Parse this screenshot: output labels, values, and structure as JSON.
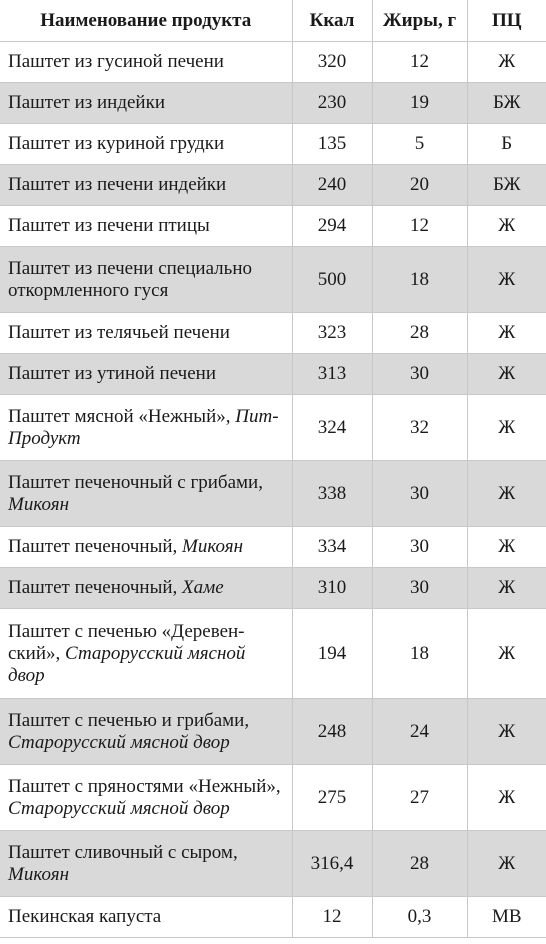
{
  "headers": {
    "name": "Наименование продукта",
    "kcal": "Ккал",
    "fat": "Жиры, г",
    "pc": "ПЦ"
  },
  "rows": [
    {
      "name": "Паштет из гусиной печени",
      "maker": "",
      "kcal": "320",
      "fat": "12",
      "pc": "Ж"
    },
    {
      "name": "Паштет из индейки",
      "maker": "",
      "kcal": "230",
      "fat": "19",
      "pc": "БЖ"
    },
    {
      "name": "Паштет из куриной грудки",
      "maker": "",
      "kcal": "135",
      "fat": "5",
      "pc": "Б"
    },
    {
      "name": "Паштет из печени индейки",
      "maker": "",
      "kcal": "240",
      "fat": "20",
      "pc": "БЖ"
    },
    {
      "name": "Паштет из печени птицы",
      "maker": "",
      "kcal": "294",
      "fat": "12",
      "pc": "Ж"
    },
    {
      "name": "Паштет из печени специально откормленного гуся",
      "maker": "",
      "kcal": "500",
      "fat": "18",
      "pc": "Ж"
    },
    {
      "name": "Паштет из телячьей печени",
      "maker": "",
      "kcal": "323",
      "fat": "28",
      "pc": "Ж"
    },
    {
      "name": "Паштет из утиной печени",
      "maker": "",
      "kcal": "313",
      "fat": "30",
      "pc": "Ж"
    },
    {
      "name": "Паштет мясной «Нежный»,",
      "maker": "Пит-Продукт",
      "kcal": "324",
      "fat": "32",
      "pc": "Ж"
    },
    {
      "name": "Паштет печеночный с грибами,",
      "maker": "Микоян",
      "kcal": "338",
      "fat": "30",
      "pc": "Ж"
    },
    {
      "name": "Паштет печеночный,",
      "maker": "Микоян",
      "kcal": "334",
      "fat": "30",
      "pc": "Ж"
    },
    {
      "name": "Паштет печеночный,",
      "maker": "Хаме",
      "kcal": "310",
      "fat": "30",
      "pc": "Ж"
    },
    {
      "name": "Паштет с печенью «Деревен-ский»,",
      "maker": "Старорусский мясной двор",
      "kcal": "194",
      "fat": "18",
      "pc": "Ж"
    },
    {
      "name": "Паштет с печенью и грибами,",
      "maker": "Старорусский мясной двор",
      "kcal": "248",
      "fat": "24",
      "pc": "Ж"
    },
    {
      "name": "Паштет с пряностями «Нежный»,",
      "maker": "Старорусский мясной двор",
      "kcal": "275",
      "fat": "27",
      "pc": "Ж"
    },
    {
      "name": "Паштет сливочный с сыром,",
      "maker": "Микоян",
      "kcal": "316,4",
      "fat": "28",
      "pc": "Ж"
    },
    {
      "name": "Пекинская капуста",
      "maker": "",
      "kcal": "12",
      "fat": "0,3",
      "pc": "МВ"
    }
  ]
}
